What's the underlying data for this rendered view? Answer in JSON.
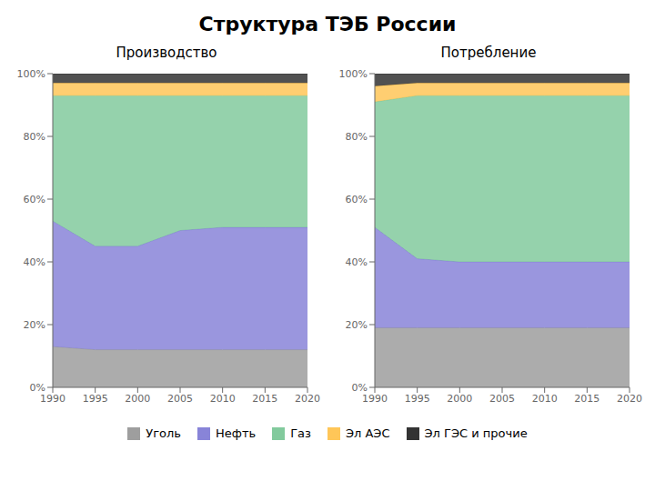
{
  "title": "Структура ТЭБ России",
  "legend": "bottom",
  "chart_data": [
    {
      "type": "area",
      "stacked": true,
      "grid": false,
      "title": "Производство",
      "x": [
        1990,
        1995,
        2000,
        2005,
        2010,
        2015,
        2020
      ],
      "xlim": [
        1990,
        2020
      ],
      "xticks": [
        1990,
        1995,
        2000,
        2005,
        2010,
        2015,
        2020
      ],
      "ylim": [
        0,
        100
      ],
      "yticks": [
        {
          "value": 0,
          "label": "0%"
        },
        {
          "value": 20,
          "label": "20%"
        },
        {
          "value": 40,
          "label": "40%"
        },
        {
          "value": 60,
          "label": "60%"
        },
        {
          "value": 80,
          "label": "80%"
        },
        {
          "value": 100,
          "label": "100%"
        }
      ],
      "series": [
        {
          "name": "Уголь",
          "color": "#9e9e9e",
          "values": [
            13,
            12,
            12,
            12,
            12,
            12,
            12
          ]
        },
        {
          "name": "Нефть",
          "color": "#8884d8",
          "values": [
            40,
            33,
            33,
            38,
            39,
            39,
            39
          ]
        },
        {
          "name": "Газ",
          "color": "#82ca9d",
          "values": [
            40,
            48,
            48,
            43,
            42,
            42,
            42
          ]
        },
        {
          "name": "Эл АЭС",
          "color": "#ffc658",
          "values": [
            4,
            4,
            4,
            4,
            4,
            4,
            4
          ]
        },
        {
          "name": "Эл ГЭС и прочие",
          "color": "#333333",
          "values": [
            3,
            3,
            3,
            3,
            3,
            3,
            3
          ]
        }
      ]
    },
    {
      "type": "area",
      "stacked": true,
      "grid": false,
      "title": "Потребление",
      "x": [
        1990,
        1995,
        2000,
        2005,
        2010,
        2015,
        2020
      ],
      "xlim": [
        1990,
        2020
      ],
      "xticks": [
        1990,
        1995,
        2000,
        2005,
        2010,
        2015,
        2020
      ],
      "ylim": [
        0,
        100
      ],
      "yticks": [
        {
          "value": 0,
          "label": "0%"
        },
        {
          "value": 20,
          "label": "20%"
        },
        {
          "value": 40,
          "label": "40%"
        },
        {
          "value": 60,
          "label": "60%"
        },
        {
          "value": 80,
          "label": "80%"
        },
        {
          "value": 100,
          "label": "100%"
        }
      ],
      "series": [
        {
          "name": "Уголь",
          "color": "#9e9e9e",
          "values": [
            19,
            19,
            19,
            19,
            19,
            19,
            19
          ]
        },
        {
          "name": "Нефть",
          "color": "#8884d8",
          "values": [
            32,
            22,
            21,
            21,
            21,
            21,
            21
          ]
        },
        {
          "name": "Газ",
          "color": "#82ca9d",
          "values": [
            40,
            52,
            53,
            53,
            53,
            53,
            53
          ]
        },
        {
          "name": "Эл АЭС",
          "color": "#ffc658",
          "values": [
            5,
            4,
            4,
            4,
            4,
            4,
            4
          ]
        },
        {
          "name": "Эл ГЭС и прочие",
          "color": "#333333",
          "values": [
            4,
            3,
            3,
            3,
            3,
            3,
            3
          ]
        }
      ]
    }
  ]
}
